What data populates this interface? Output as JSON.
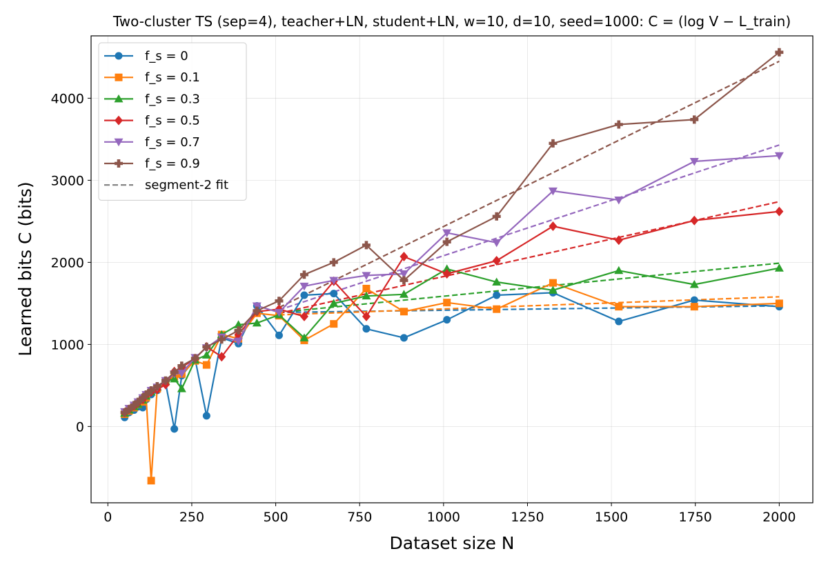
{
  "chart_data": {
    "type": "line",
    "title": "Two-cluster TS (sep=4), teacher+LN, student+LN, w=10, d=10, seed=1000: C = (log V − L_train)",
    "xlabel": "Dataset size N",
    "ylabel": "Learned bits C (bits)",
    "xlim": [
      -50,
      2100
    ],
    "ylim": [
      -930,
      4760
    ],
    "xticks": [
      0,
      250,
      500,
      750,
      1000,
      1250,
      1500,
      1750,
      2000
    ],
    "yticks": [
      0,
      1000,
      2000,
      3000,
      4000
    ],
    "grid": true,
    "legend_position": "top-left",
    "x": [
      50,
      63,
      78,
      90,
      104,
      114,
      129,
      147,
      172,
      198,
      220,
      260,
      294,
      339,
      389,
      444,
      510,
      585,
      673,
      770,
      882,
      1010,
      1158,
      1326,
      1522,
      1747,
      2000
    ],
    "series": [
      {
        "name": "f_s = 0",
        "color": "#1f77b4",
        "marker": "circle",
        "values": [
          110,
          170,
          200,
          240,
          230,
          330,
          390,
          440,
          530,
          -30,
          620,
          820,
          130,
          1080,
          1010,
          1470,
          1110,
          1600,
          1620,
          1190,
          1080,
          1300,
          1600,
          1630,
          1280,
          1540,
          1460
        ],
        "fit": [
          [
            510,
            1390
          ],
          [
            2000,
            1470
          ]
        ]
      },
      {
        "name": "f_s = 0.1",
        "color": "#ff7f0e",
        "marker": "square",
        "values": [
          150,
          190,
          230,
          270,
          300,
          350,
          -660,
          460,
          540,
          610,
          640,
          800,
          750,
          1120,
          1070,
          1380,
          1350,
          1050,
          1250,
          1680,
          1400,
          1510,
          1430,
          1750,
          1460,
          1460,
          1500
        ],
        "fit": [
          [
            510,
            1360
          ],
          [
            2000,
            1580
          ]
        ]
      },
      {
        "name": "f_s = 0.3",
        "color": "#2ca02c",
        "marker": "triangle-up",
        "values": [
          160,
          200,
          240,
          270,
          320,
          370,
          420,
          480,
          550,
          580,
          460,
          810,
          870,
          1120,
          1240,
          1260,
          1360,
          1080,
          1500,
          1590,
          1610,
          1920,
          1760,
          1660,
          1900,
          1730,
          1930
        ],
        "fit": [
          [
            510,
            1390
          ],
          [
            2000,
            1990
          ]
        ]
      },
      {
        "name": "f_s = 0.5",
        "color": "#d62728",
        "marker": "diamond",
        "values": [
          170,
          210,
          250,
          290,
          330,
          380,
          420,
          450,
          510,
          670,
          720,
          830,
          970,
          850,
          1120,
          1400,
          1430,
          1340,
          1770,
          1340,
          2070,
          1860,
          2020,
          2440,
          2270,
          2510,
          2620
        ],
        "fit": [
          [
            510,
            1380
          ],
          [
            2000,
            2740
          ]
        ]
      },
      {
        "name": "f_s = 0.7",
        "color": "#9467bd",
        "marker": "triangle-down",
        "values": [
          180,
          220,
          260,
          300,
          350,
          390,
          440,
          480,
          560,
          640,
          650,
          840,
          960,
          1090,
          1040,
          1470,
          1390,
          1710,
          1780,
          1840,
          1860,
          2360,
          2240,
          2870,
          2760,
          3230,
          3300
        ],
        "fit": [
          [
            510,
            1420
          ],
          [
            2000,
            3430
          ]
        ]
      },
      {
        "name": "f_s = 0.9",
        "color": "#8c564b",
        "marker": "plus",
        "values": [
          170,
          210,
          260,
          300,
          350,
          390,
          440,
          490,
          560,
          660,
          740,
          830,
          970,
          1060,
          1170,
          1410,
          1530,
          1850,
          2000,
          2210,
          1780,
          2250,
          2560,
          3450,
          3680,
          3740,
          4560
        ],
        "fit": [
          [
            510,
            1450
          ],
          [
            2000,
            4450
          ]
        ]
      }
    ],
    "fit_legend": {
      "name": "segment-2 fit",
      "color": "#7f7f7f",
      "style": "dashed"
    }
  }
}
